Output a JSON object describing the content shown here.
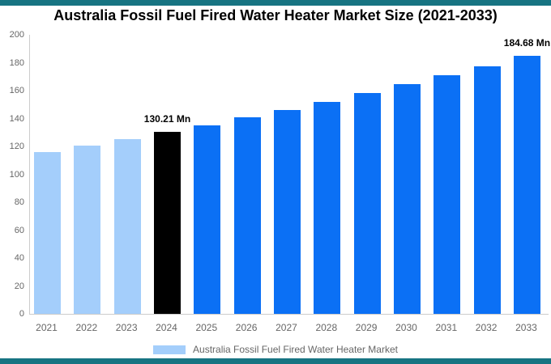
{
  "header": {
    "title": "Australia Fossil Fuel Fired Water Heater Market Size (2021-2033)"
  },
  "legend": {
    "label": "Australia Fossil Fuel Fired Water Heater Market",
    "swatch_color": "#A4CEFB"
  },
  "colors": {
    "accent_strip": "#177482",
    "historical": "#A4CEFB",
    "current": "#000000",
    "forecast": "#0B70F5",
    "axis_line": "#CCCCCC",
    "tick_text": "#666666",
    "title_text": "#000000"
  },
  "chart_data": {
    "type": "bar",
    "title": "Australia Fossil Fuel Fired Water Heater Market Size (2021-2033)",
    "categories": [
      "2021",
      "2022",
      "2023",
      "2024",
      "2025",
      "2026",
      "2027",
      "2028",
      "2029",
      "2030",
      "2031",
      "2032",
      "2033"
    ],
    "values": [
      115.88,
      120.47,
      125.25,
      130.21,
      135.37,
      140.73,
      146.3,
      152.09,
      158.11,
      164.37,
      170.88,
      177.64,
      184.68
    ],
    "period_types": [
      "historical",
      "historical",
      "historical",
      "current",
      "forecast",
      "forecast",
      "forecast",
      "forecast",
      "forecast",
      "forecast",
      "forecast",
      "forecast",
      "forecast"
    ],
    "annotations": [
      {
        "category": "2024",
        "text": "130.21 Mn"
      },
      {
        "category": "2033",
        "text": "184.68 Mn"
      }
    ],
    "units": "Mn",
    "xlabel": "",
    "ylabel": "",
    "ylim": [
      0,
      200
    ],
    "y_tick_step": 20,
    "grid": false,
    "legend_position": "bottom",
    "legend_entries": [
      "Australia Fossil Fuel Fired Water Heater Market"
    ]
  }
}
